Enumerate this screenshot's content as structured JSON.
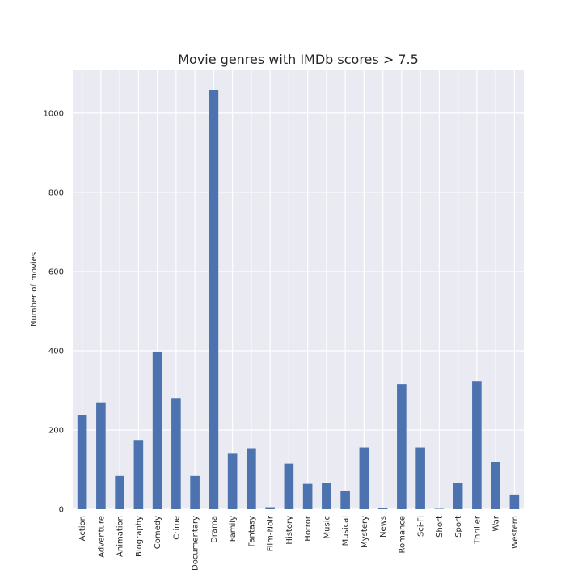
{
  "chart_data": {
    "type": "bar",
    "title": "Movie genres with IMDb scores > 7.5",
    "xlabel": "",
    "ylabel": "Number of movies",
    "ylim": [
      0,
      1110
    ],
    "yticks": [
      0,
      200,
      400,
      600,
      800,
      1000
    ],
    "grid": true,
    "legend": "none",
    "bar_color": "#4c72b0",
    "background_color": "#eaeaf2",
    "categories": [
      "Action",
      "Adventure",
      "Animation",
      "Biography",
      "Comedy",
      "Crime",
      "Documentary",
      "Drama",
      "Family",
      "Fantasy",
      "Film-Noir",
      "History",
      "Horror",
      "Music",
      "Musical",
      "Mystery",
      "News",
      "Romance",
      "Sci-Fi",
      "Short",
      "Sport",
      "Thriller",
      "War",
      "Western"
    ],
    "values": [
      238,
      270,
      84,
      175,
      398,
      281,
      84,
      1059,
      140,
      154,
      5,
      115,
      64,
      66,
      47,
      156,
      2,
      316,
      156,
      1,
      66,
      324,
      119,
      37
    ]
  }
}
